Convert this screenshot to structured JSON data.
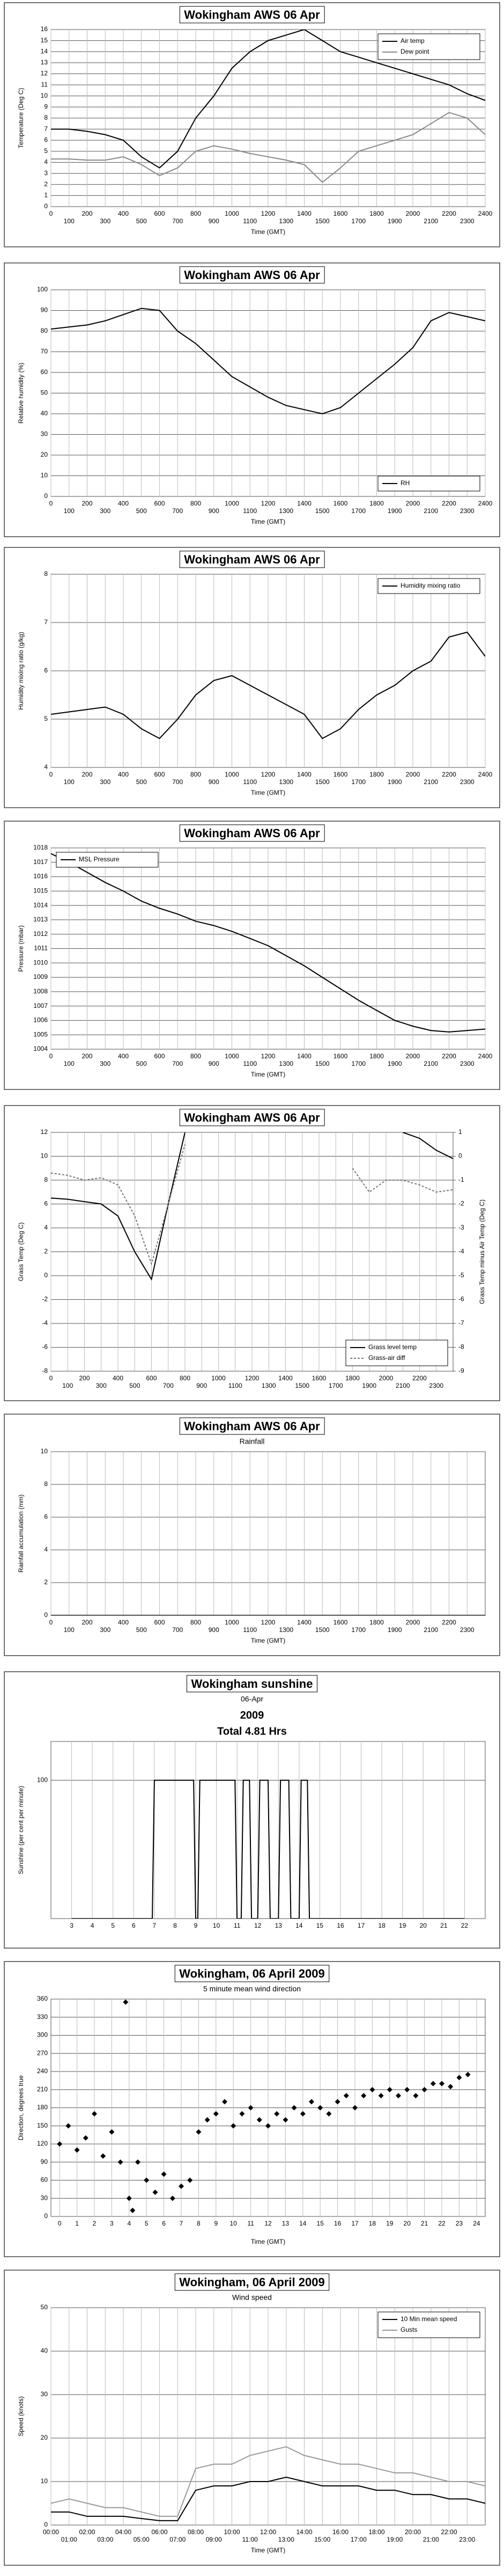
{
  "chart_data": [
    {
      "type": "line",
      "title": "Wokingham AWS 06 Apr",
      "xlabel": "Time (GMT)",
      "ylabel": "Temperature (Deg C)",
      "legend": "top-right",
      "grid": true,
      "x": [
        0,
        100,
        200,
        300,
        400,
        500,
        600,
        700,
        800,
        900,
        1000,
        1100,
        1200,
        1300,
        1400,
        1500,
        1600,
        1700,
        1800,
        1900,
        2000,
        2100,
        2200,
        2300,
        2400
      ],
      "xlim": [
        0,
        2400
      ],
      "xticks": [
        0,
        100,
        200,
        300,
        400,
        500,
        600,
        700,
        800,
        900,
        1000,
        1100,
        1200,
        1300,
        1400,
        1500,
        1600,
        1700,
        1800,
        1900,
        2000,
        2100,
        2200,
        2300,
        2400
      ],
      "ylim": [
        0,
        16
      ],
      "yticks": [
        0,
        1,
        2,
        3,
        4,
        5,
        6,
        7,
        8,
        9,
        10,
        11,
        12,
        13,
        14,
        15,
        16
      ],
      "series": [
        {
          "name": "Air temp",
          "color": "#000000",
          "values": [
            7,
            7,
            6.8,
            6.5,
            6,
            4.5,
            3.5,
            5,
            8,
            10,
            12.5,
            14,
            15,
            15.5,
            16,
            15,
            14,
            13.5,
            13,
            12.5,
            12,
            11.5,
            11,
            10.2,
            9.6
          ]
        },
        {
          "name": "Dew point",
          "color": "#888888",
          "values": [
            4.3,
            4.3,
            4.2,
            4.2,
            4.5,
            3.8,
            2.8,
            3.5,
            5,
            5.5,
            5.2,
            4.8,
            4.5,
            4.2,
            3.8,
            2.2,
            3.5,
            5,
            5.5,
            6,
            6.5,
            7.5,
            8.5,
            8,
            6.5
          ]
        }
      ]
    },
    {
      "type": "line",
      "title": "Wokingham AWS 06 Apr",
      "xlabel": "Time (GMT)",
      "ylabel": "Relative humidity (%)",
      "legend": "bottom-right",
      "grid": true,
      "x": [
        0,
        100,
        200,
        300,
        400,
        500,
        600,
        700,
        800,
        900,
        1000,
        1100,
        1200,
        1300,
        1400,
        1500,
        1600,
        1700,
        1800,
        1900,
        2000,
        2100,
        2200,
        2300,
        2400
      ],
      "xlim": [
        0,
        2400
      ],
      "xticks": [
        0,
        100,
        200,
        300,
        400,
        500,
        600,
        700,
        800,
        900,
        1000,
        1100,
        1200,
        1300,
        1400,
        1500,
        1600,
        1700,
        1800,
        1900,
        2000,
        2100,
        2200,
        2300,
        2400
      ],
      "ylim": [
        0,
        100
      ],
      "yticks": [
        0,
        10,
        20,
        30,
        40,
        50,
        60,
        70,
        80,
        90,
        100
      ],
      "series": [
        {
          "name": "RH",
          "color": "#000000",
          "values": [
            81,
            82,
            83,
            85,
            88,
            91,
            90,
            80,
            74,
            66,
            58,
            53,
            48,
            44,
            42,
            40,
            43,
            50,
            57,
            64,
            72,
            85,
            89,
            87,
            85
          ]
        }
      ]
    },
    {
      "type": "line",
      "title": "Wokingham AWS 06 Apr",
      "xlabel": "Time (GMT)",
      "ylabel": "Humidity mixing ratio (g/kg)",
      "legend": "top-right",
      "grid": true,
      "x": [
        0,
        100,
        200,
        300,
        400,
        500,
        600,
        700,
        800,
        900,
        1000,
        1100,
        1200,
        1300,
        1400,
        1500,
        1600,
        1700,
        1800,
        1900,
        2000,
        2100,
        2200,
        2300,
        2400
      ],
      "xlim": [
        0,
        2400
      ],
      "xticks": [
        0,
        100,
        200,
        300,
        400,
        500,
        600,
        700,
        800,
        900,
        1000,
        1100,
        1200,
        1300,
        1400,
        1500,
        1600,
        1700,
        1800,
        1900,
        2000,
        2100,
        2200,
        2300,
        2400
      ],
      "ylim": [
        4,
        8
      ],
      "yticks": [
        4,
        5,
        6,
        7,
        8
      ],
      "series": [
        {
          "name": "Humidity mixing ratio",
          "color": "#000000",
          "values": [
            5.1,
            5.15,
            5.2,
            5.25,
            5.1,
            4.8,
            4.6,
            5,
            5.5,
            5.8,
            5.9,
            5.7,
            5.5,
            5.3,
            5.1,
            4.6,
            4.8,
            5.2,
            5.5,
            5.7,
            6,
            6.2,
            6.7,
            6.8,
            6.3
          ]
        }
      ]
    },
    {
      "type": "line",
      "title": "Wokingham AWS 06 Apr",
      "xlabel": "Time (GMT)",
      "ylabel": "Pressure (mbar)",
      "legend": "top-left",
      "grid": true,
      "x": [
        0,
        100,
        200,
        300,
        400,
        500,
        600,
        700,
        800,
        900,
        1000,
        1100,
        1200,
        1300,
        1400,
        1500,
        1600,
        1700,
        1800,
        1900,
        2000,
        2100,
        2200,
        2300,
        2400
      ],
      "xlim": [
        0,
        2400
      ],
      "xticks": [
        0,
        100,
        200,
        300,
        400,
        500,
        600,
        700,
        800,
        900,
        1000,
        1100,
        1200,
        1300,
        1400,
        1500,
        1600,
        1700,
        1800,
        1900,
        2000,
        2100,
        2200,
        2300,
        2400
      ],
      "ylim": [
        1004,
        1018
      ],
      "yticks": [
        1004,
        1005,
        1006,
        1007,
        1008,
        1009,
        1010,
        1011,
        1012,
        1013,
        1014,
        1015,
        1016,
        1017,
        1018
      ],
      "series": [
        {
          "name": "MSL Pressure",
          "color": "#000000",
          "values": [
            1017.6,
            1017,
            1016.3,
            1015.6,
            1015,
            1014.3,
            1013.8,
            1013.4,
            1012.9,
            1012.6,
            1012.2,
            1011.7,
            1011.2,
            1010.5,
            1009.8,
            1009,
            1008.2,
            1007.4,
            1006.7,
            1006,
            1005.6,
            1005.3,
            1005.2,
            1005.3,
            1005.4
          ]
        }
      ]
    },
    {
      "type": "line",
      "title": "Wokingham AWS 06 Apr",
      "ylabel": "Grass Temp (Deg C)",
      "y2label": "Grass Temp minus Air Temp (Deg C)",
      "legend": "bottom-right",
      "grid": true,
      "x": [
        0,
        100,
        200,
        300,
        400,
        500,
        600,
        700,
        800,
        900,
        1000,
        1100,
        1200,
        1300,
        1400,
        1500,
        1600,
        1700,
        1800,
        1900,
        2000,
        2100,
        2200,
        2300,
        2400
      ],
      "xlim": [
        0,
        2400
      ],
      "xticks": [
        0,
        100,
        200,
        300,
        400,
        500,
        600,
        700,
        800,
        900,
        1000,
        1100,
        1200,
        1300,
        1400,
        1500,
        1600,
        1700,
        1800,
        1900,
        2000,
        2100,
        2200,
        2300
      ],
      "ylim": [
        -8,
        12
      ],
      "yticks": [
        -8,
        -6,
        -4,
        -2,
        0,
        2,
        4,
        6,
        8,
        10,
        12
      ],
      "y2lim": [
        -9,
        1
      ],
      "y2ticks": [
        -9,
        -8,
        -7,
        -6,
        -5,
        -4,
        -3,
        -2,
        -1,
        0,
        1
      ],
      "series": [
        {
          "name": "Grass level temp",
          "color": "#000000",
          "values": [
            6.5,
            6.4,
            6.2,
            6,
            5,
            2,
            -0.3,
            6,
            12,
            null,
            null,
            null,
            null,
            null,
            null,
            null,
            null,
            null,
            null,
            null,
            null,
            12,
            11.5,
            10.5,
            9.8
          ]
        },
        {
          "name": "Grass-air diff",
          "color": "#777777",
          "dash": true,
          "axis": "y2",
          "values": [
            -0.7,
            -0.8,
            -1,
            -0.9,
            -1.2,
            -2.5,
            -4.5,
            -2,
            0.5,
            null,
            null,
            null,
            null,
            null,
            null,
            null,
            null,
            null,
            -0.5,
            -1.5,
            -1,
            -1,
            -1.2,
            -1.5,
            -1.4
          ]
        }
      ]
    },
    {
      "type": "line",
      "title": "Wokingham AWS 06 Apr",
      "subtitle": "Rainfall",
      "xlabel": "Time (GMT)",
      "ylabel": "Rainfall accumulation (mm)",
      "grid": true,
      "x": [
        0,
        100,
        200,
        300,
        400,
        500,
        600,
        700,
        800,
        900,
        1000,
        1100,
        1200,
        1300,
        1400,
        1500,
        1600,
        1700,
        1800,
        1900,
        2000,
        2100,
        2200,
        2300,
        2400
      ],
      "xlim": [
        0,
        2400
      ],
      "xticks": [
        0,
        100,
        200,
        300,
        400,
        500,
        600,
        700,
        800,
        900,
        1000,
        1100,
        1200,
        1300,
        1400,
        1500,
        1600,
        1700,
        1800,
        1900,
        2000,
        2100,
        2200,
        2300
      ],
      "ylim": [
        0,
        10
      ],
      "yticks": [
        0,
        2,
        4,
        6,
        8,
        10
      ],
      "series": [
        {
          "color": "#000000",
          "values": [
            0,
            0,
            0,
            0,
            0,
            0,
            0,
            0,
            0,
            0,
            0,
            0,
            0,
            0,
            0,
            0,
            0,
            0,
            0,
            0,
            0,
            0,
            0,
            0,
            0
          ]
        }
      ]
    },
    {
      "type": "line",
      "title": "Wokingham sunshine",
      "subtitle": "06-Apr",
      "annotations": [
        "2009",
        "Total 4.81 Hrs"
      ],
      "ylabel": "Sunshine (per cent per minute)",
      "grid": true,
      "x": [
        3,
        6.9,
        7,
        8.9,
        9,
        9.1,
        9.2,
        10.9,
        11,
        11.2,
        11.3,
        11.6,
        11.7,
        12,
        12.1,
        12.5,
        12.6,
        13,
        13.1,
        13.5,
        13.6,
        14,
        14.1,
        14.4,
        14.5,
        22
      ],
      "xlim": [
        2,
        23
      ],
      "xticks": [
        3,
        4,
        5,
        6,
        7,
        8,
        9,
        10,
        11,
        12,
        13,
        14,
        15,
        16,
        17,
        18,
        19,
        20,
        21,
        22
      ],
      "ylim": [
        0,
        128
      ],
      "yticks": [
        100
      ],
      "series": [
        {
          "color": "#000000",
          "values": [
            0,
            0,
            100,
            100,
            0,
            0,
            100,
            100,
            0,
            0,
            100,
            100,
            0,
            0,
            100,
            100,
            0,
            0,
            100,
            100,
            0,
            0,
            100,
            100,
            0,
            0
          ]
        }
      ]
    },
    {
      "type": "scatter",
      "title": "Wokingham,  06 April 2009",
      "subtitle": "5 minute mean wind direction",
      "xlabel": "Time (GMT)",
      "ylabel": "Direction, degrees true",
      "grid": true,
      "x": [
        0,
        0.5,
        1,
        1.5,
        2,
        2.5,
        3,
        3.5,
        3.8,
        4,
        4.2,
        4.5,
        5,
        5.5,
        6,
        6.5,
        7,
        7.5,
        8,
        8.5,
        9,
        9.5,
        10,
        10.5,
        11,
        11.5,
        12,
        12.5,
        13,
        13.5,
        14,
        14.5,
        15,
        15.5,
        16,
        16.5,
        17,
        17.5,
        18,
        18.5,
        19,
        19.5,
        20,
        20.5,
        21,
        21.5,
        22,
        22.5,
        23,
        23.5
      ],
      "xlim": [
        -0.5,
        24.5
      ],
      "xticks": [
        0,
        1,
        2,
        3,
        4,
        5,
        6,
        7,
        8,
        9,
        10,
        11,
        12,
        13,
        14,
        15,
        16,
        17,
        18,
        19,
        20,
        21,
        22,
        23,
        24
      ],
      "ylim": [
        0,
        360
      ],
      "yticks": [
        0,
        30,
        60,
        90,
        120,
        150,
        180,
        210,
        240,
        270,
        300,
        330,
        360
      ],
      "series": [
        {
          "color": "#000000",
          "values": [
            120,
            150,
            110,
            130,
            170,
            100,
            140,
            90,
            355,
            30,
            10,
            90,
            60,
            40,
            70,
            30,
            50,
            60,
            140,
            160,
            170,
            190,
            150,
            170,
            180,
            160,
            150,
            170,
            160,
            180,
            170,
            190,
            180,
            170,
            190,
            200,
            180,
            200,
            210,
            200,
            210,
            200,
            210,
            200,
            210,
            220,
            220,
            215,
            230,
            235
          ]
        }
      ]
    },
    {
      "type": "line",
      "title": "Wokingham,  06 April 2009",
      "subtitle": "Wind speed",
      "xlabel": "Time (GMT)",
      "ylabel": "Speed (knots)",
      "legend": "top-right",
      "grid": true,
      "x": [
        0,
        1,
        2,
        3,
        4,
        5,
        6,
        7,
        8,
        9,
        10,
        11,
        12,
        13,
        14,
        15,
        16,
        17,
        18,
        19,
        20,
        21,
        22,
        23,
        24
      ],
      "xlim": [
        0,
        24
      ],
      "xticks": [
        {
          "value": 0,
          "label": "00:00"
        },
        {
          "value": 1,
          "label": "01:00"
        },
        {
          "value": 2,
          "label": "02:00"
        },
        {
          "value": 3,
          "label": "03:00"
        },
        {
          "value": 4,
          "label": "04:00"
        },
        {
          "value": 5,
          "label": "05:00"
        },
        {
          "value": 6,
          "label": "06:00"
        },
        {
          "value": 7,
          "label": "07:00"
        },
        {
          "value": 8,
          "label": "08:00"
        },
        {
          "value": 9,
          "label": "09:00"
        },
        {
          "value": 10,
          "label": "10:00"
        },
        {
          "value": 11,
          "label": "11:00"
        },
        {
          "value": 12,
          "label": "12:00"
        },
        {
          "value": 13,
          "label": "13:00"
        },
        {
          "value": 14,
          "label": "14:00"
        },
        {
          "value": 15,
          "label": "15:00"
        },
        {
          "value": 16,
          "label": "16:00"
        },
        {
          "value": 17,
          "label": "17:00"
        },
        {
          "value": 18,
          "label": "18:00"
        },
        {
          "value": 19,
          "label": "19:00"
        },
        {
          "value": 20,
          "label": "20:00"
        },
        {
          "value": 21,
          "label": "21:00"
        },
        {
          "value": 22,
          "label": "22:00"
        },
        {
          "value": 23,
          "label": "23:00"
        }
      ],
      "ylim": [
        0,
        50
      ],
      "yticks": [
        0,
        10,
        20,
        30,
        40,
        50
      ],
      "series": [
        {
          "name": "10 Min mean speed",
          "color": "#000000",
          "values": [
            3,
            3,
            2,
            2,
            2,
            1.5,
            1,
            1,
            8,
            9,
            9,
            10,
            10,
            11,
            10,
            9,
            9,
            9,
            8,
            8,
            7,
            7,
            6,
            6,
            5
          ]
        },
        {
          "name": "Gusts",
          "color": "#999999",
          "values": [
            5,
            6,
            5,
            4,
            4,
            3,
            2,
            2,
            13,
            14,
            14,
            16,
            17,
            18,
            16,
            15,
            14,
            14,
            13,
            12,
            12,
            11,
            10,
            10,
            9
          ]
        }
      ]
    }
  ]
}
